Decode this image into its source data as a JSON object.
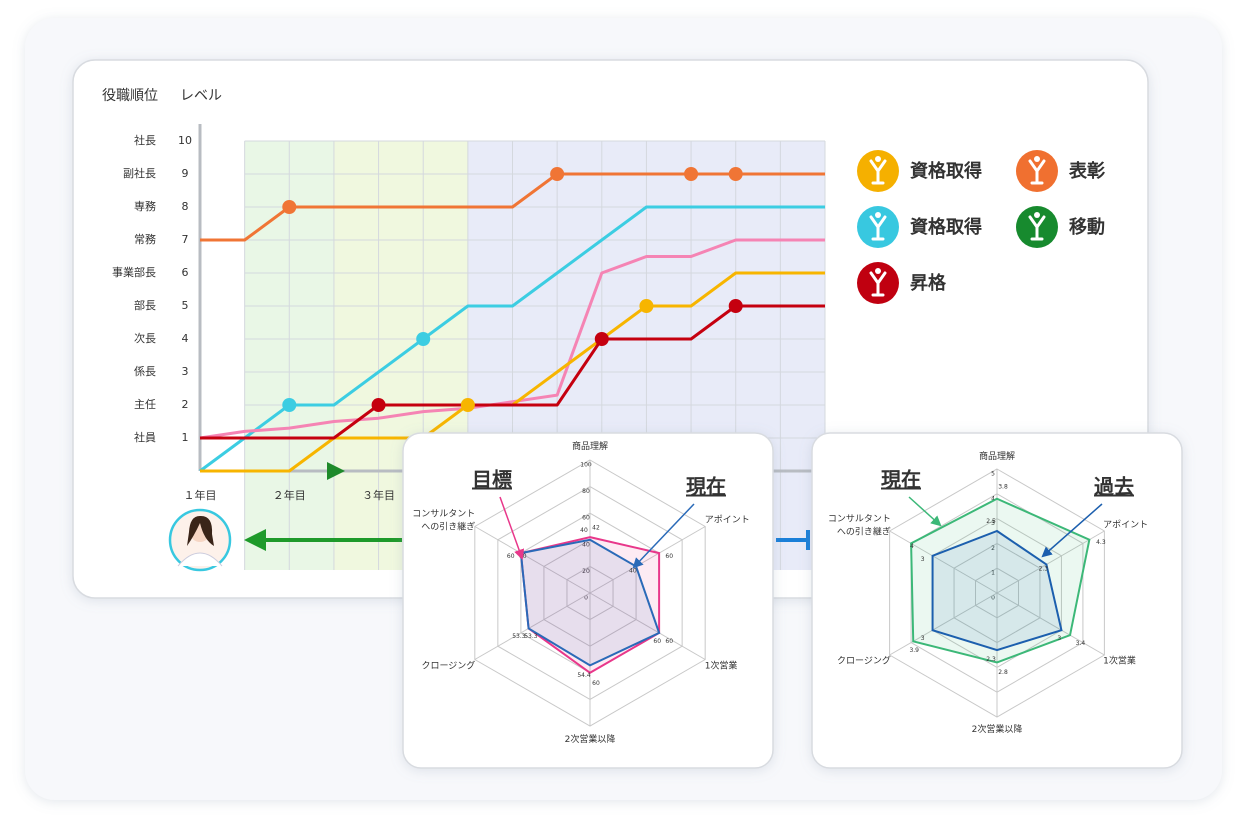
{
  "chart_data": [
    {
      "type": "line",
      "rank_title": "役職順位",
      "level_title": "レベル",
      "rank_labels": [
        "社員",
        "主任",
        "係長",
        "次長",
        "部長",
        "事業部長",
        "常務",
        "専務",
        "副社長",
        "社長"
      ],
      "x": [
        0,
        1,
        2,
        3,
        4,
        5,
        6,
        7,
        8,
        9,
        10,
        11,
        12,
        13,
        14
      ],
      "xlim": [
        0,
        14
      ],
      "xticks": [
        {
          "value": 0,
          "label": "１年目"
        },
        {
          "value": 2,
          "label": "２年目"
        },
        {
          "value": 4,
          "label": "３年目"
        }
      ],
      "ylim": [
        0,
        10
      ],
      "yticks": [
        1,
        2,
        3,
        4,
        5,
        6,
        7,
        8,
        9,
        10
      ],
      "grid": true,
      "bands": [
        {
          "from": 1,
          "to": 3,
          "color": "#e9f7e6"
        },
        {
          "from": 3,
          "to": 6,
          "color": "#f0f8df"
        },
        {
          "from": 6,
          "to": 14,
          "color": "#e8ebf8"
        }
      ],
      "series": [
        {
          "color": "#f07535",
          "values": [
            7,
            7,
            8,
            8,
            8,
            8,
            8,
            8,
            9,
            9,
            9,
            9,
            9,
            9,
            9
          ],
          "markers": [
            2,
            8,
            11,
            12
          ]
        },
        {
          "color": "#3ccde2",
          "values": [
            0,
            1,
            2,
            2,
            3,
            4,
            5,
            5,
            6,
            7,
            8,
            8,
            8,
            8,
            8
          ],
          "markers": [
            2,
            5
          ]
        },
        {
          "color": "#f584b4",
          "values": [
            1,
            1.2,
            1.3,
            1.5,
            1.6,
            1.8,
            1.9,
            2.1,
            2.3,
            6,
            6.5,
            6.5,
            7,
            7,
            7
          ],
          "markers": []
        },
        {
          "color": "#f7b500",
          "values": [
            0,
            0,
            0,
            1,
            1,
            1,
            2,
            2,
            3,
            4,
            5,
            5,
            6,
            6,
            6
          ],
          "markers": [
            6,
            10
          ]
        },
        {
          "color": "#c5000f",
          "values": [
            1,
            1,
            1,
            1,
            2,
            2,
            2,
            2,
            2,
            4,
            4,
            4,
            5,
            5,
            5
          ],
          "markers": [
            4,
            9,
            12
          ]
        }
      ],
      "legend": [
        {
          "label": "資格取得",
          "color": "#f5b000"
        },
        {
          "label": "資格取得",
          "color": "#38c8e0"
        },
        {
          "label": "昇格",
          "color": "#c00010"
        },
        {
          "label": "表彰",
          "color": "#f07030"
        },
        {
          "label": "移動",
          "color": "#178a2e"
        }
      ]
    },
    {
      "type": "radar",
      "axes": [
        "商品理解",
        "アポイント",
        "1次営業",
        "2次営業以降",
        "クロージング",
        "コンサルタント\nへの引き継ぎ"
      ],
      "rlim": [
        0,
        100
      ],
      "rticks": [
        0,
        20,
        40,
        60,
        80,
        100
      ],
      "series": [
        {
          "name": "目標",
          "color": "#e8378a",
          "values": [
            42,
            60,
            60,
            60,
            53.3,
            60
          ]
        },
        {
          "name": "現在",
          "color": "#2a6ab8",
          "values": [
            40,
            40,
            60,
            54.4,
            53.3,
            60
          ]
        }
      ]
    },
    {
      "type": "radar",
      "axes": [
        "商品理解",
        "アポイント",
        "1次営業",
        "2次営業以降",
        "クロージング",
        "コンサルタント\nへの引き継ぎ"
      ],
      "rlim": [
        0,
        5
      ],
      "rticks": [
        0,
        1,
        2,
        3,
        4,
        5
      ],
      "series": [
        {
          "name": "現在",
          "color": "#3cb878",
          "values": [
            3.8,
            4.3,
            3.4,
            2.8,
            3.9,
            4
          ]
        },
        {
          "name": "過去",
          "color": "#1c5fae",
          "values": [
            2.5,
            2.3,
            3,
            2.3,
            3,
            3
          ]
        }
      ]
    }
  ]
}
